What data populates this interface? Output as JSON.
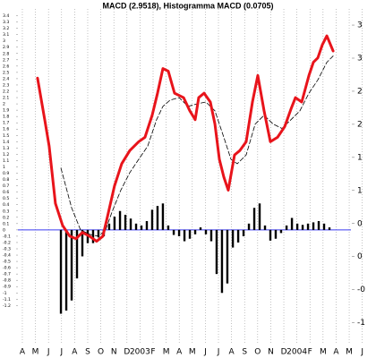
{
  "chart_data": {
    "type": "line",
    "title": "MACD (2.9518), Histogramma MACD (0.0705)",
    "xlim": [
      -0.34,
      26.64
    ],
    "xticks": [
      {
        "value": 0,
        "label": "A"
      },
      {
        "value": 1,
        "label": "M"
      },
      {
        "value": 2,
        "label": "J"
      },
      {
        "value": 3,
        "label": "J"
      },
      {
        "value": 4,
        "label": "A"
      },
      {
        "value": 5,
        "label": "S"
      },
      {
        "value": 6,
        "label": "O"
      },
      {
        "value": 7,
        "label": "N"
      },
      {
        "value": 8,
        "label": "D"
      },
      {
        "value": 9,
        "label": "2003"
      },
      {
        "value": 10,
        "label": "F"
      },
      {
        "value": 11,
        "label": "M"
      },
      {
        "value": 12,
        "label": "A"
      },
      {
        "value": 13,
        "label": "M"
      },
      {
        "value": 14,
        "label": "J"
      },
      {
        "value": 15,
        "label": "J"
      },
      {
        "value": 16,
        "label": "A"
      },
      {
        "value": 17,
        "label": "S"
      },
      {
        "value": 18,
        "label": "O"
      },
      {
        "value": 19,
        "label": "N"
      },
      {
        "value": 20,
        "label": "D"
      },
      {
        "value": 21,
        "label": "2004"
      },
      {
        "value": 22,
        "label": "F"
      },
      {
        "value": 23,
        "label": "M"
      },
      {
        "value": 24,
        "label": "A"
      },
      {
        "value": 25,
        "label": "M"
      },
      {
        "value": 26,
        "label": "J"
      }
    ],
    "ylim": [
      -1.82,
      3.45
    ],
    "yticks": [
      3.4,
      3.3,
      3.2,
      3.1,
      3,
      2.9,
      2.8,
      2.7,
      2.6,
      2.5,
      2.4,
      2.3,
      2.2,
      2.1,
      2,
      1.9,
      1.8,
      1.7,
      1.6,
      1.5,
      1.4,
      1.3,
      1.2,
      1.1,
      1,
      0.9,
      0.8,
      0.7,
      0.6,
      0.5,
      0.4,
      0.3,
      0.2,
      0.1,
      0,
      -0.1,
      -0.2,
      -0.3,
      -0.4,
      -0.5,
      -0.6,
      -0.7,
      -0.8,
      -0.9,
      -1,
      -1.1,
      -1.2
    ],
    "y2lim": [
      -1.33,
      3.69
    ],
    "y2ticks": [
      {
        "value": 3.5,
        "label": "3"
      },
      {
        "value": 3,
        "label": "3"
      },
      {
        "value": 2.5,
        "label": "2"
      },
      {
        "value": 2,
        "label": "2"
      },
      {
        "value": 1.5,
        "label": "1"
      },
      {
        "value": 1,
        "label": "1"
      },
      {
        "value": 0.5,
        "label": "0"
      },
      {
        "value": 0,
        "label": "0"
      },
      {
        "value": -0.5,
        "label": "-0"
      },
      {
        "value": -1,
        "label": "-1"
      }
    ],
    "grid": true,
    "zero_line_color": "#3c3cf0",
    "series": [
      {
        "type": "bar",
        "color": "#000000",
        "x": [
          2.95,
          3.36,
          3.77,
          4.18,
          4.59,
          5.0,
          5.41,
          5.82,
          6.23,
          6.64,
          7.05,
          7.47,
          7.88,
          8.29,
          8.7,
          9.11,
          9.52,
          9.93,
          10.34,
          10.75,
          11.16,
          11.58,
          11.99,
          12.4,
          12.81,
          13.22,
          13.63,
          14.04,
          14.45,
          14.86,
          15.27,
          15.68,
          16.1,
          16.51,
          16.92,
          17.33,
          17.74,
          18.15,
          18.56,
          18.97,
          19.38,
          19.79,
          20.21,
          20.62,
          21.03,
          21.44,
          21.85,
          22.26,
          22.67,
          23.08,
          23.49
        ],
        "values": [
          -1.33,
          -1.28,
          -1.12,
          -0.77,
          -0.42,
          -0.21,
          -0.21,
          -0.12,
          -0.1,
          0.1,
          0.21,
          0.3,
          0.24,
          0.18,
          0.1,
          0.07,
          0.14,
          0.32,
          0.38,
          0.42,
          0.07,
          -0.08,
          -0.1,
          -0.18,
          -0.14,
          -0.07,
          0.04,
          -0.07,
          -0.18,
          -0.7,
          -1.0,
          -0.85,
          -0.28,
          -0.2,
          -0.1,
          0.1,
          0.35,
          0.42,
          0.07,
          -0.17,
          -0.14,
          -0.05,
          0.07,
          0.19,
          0.1,
          0.08,
          0.1,
          0.12,
          0.14,
          0.1,
          0.04
        ]
      },
      {
        "type": "line",
        "color": "#000000",
        "dash": true,
        "width": 0.8,
        "x": [
          2.95,
          3.77,
          4.45,
          5.14,
          5.82,
          6.37,
          6.85,
          7.53,
          8.22,
          8.9,
          9.59,
          10.27,
          10.75,
          11.3,
          11.99,
          12.67,
          13.36,
          14.04,
          14.73,
          15.41,
          15.96,
          16.44,
          17.12,
          17.81,
          18.49,
          19.18,
          19.86,
          20.55,
          21.23,
          21.92,
          22.6,
          23.29,
          23.77
        ],
        "values": [
          0.98,
          0.35,
          0,
          -0.07,
          -0.1,
          0,
          0.28,
          0.63,
          0.91,
          1.12,
          1.33,
          1.75,
          1.96,
          2.06,
          2.1,
          1.96,
          2.0,
          2.03,
          1.89,
          1.47,
          1.12,
          1.05,
          1.19,
          1.68,
          1.82,
          1.68,
          1.61,
          1.75,
          1.89,
          2.17,
          2.38,
          2.66,
          2.76
        ]
      },
      {
        "type": "line",
        "color": "#e8141b",
        "dash": false,
        "width": 3,
        "x": [
          1.16,
          1.71,
          2.05,
          2.53,
          3.08,
          3.63,
          4.11,
          4.59,
          5.14,
          5.68,
          6.16,
          6.51,
          7.05,
          7.6,
          8.22,
          8.9,
          9.38,
          9.93,
          10.34,
          10.75,
          11.16,
          11.64,
          12.33,
          12.81,
          13.22,
          13.49,
          13.9,
          14.38,
          14.73,
          15.07,
          15.41,
          15.75,
          16.23,
          16.64,
          17.12,
          17.6,
          18.01,
          18.49,
          18.97,
          19.52,
          20.07,
          20.55,
          20.89,
          21.37,
          21.92,
          22.26,
          22.6,
          22.95,
          23.29,
          23.77
        ],
        "values": [
          2.41,
          1.75,
          1.33,
          0.42,
          0.07,
          -0.1,
          -0.14,
          -0.04,
          -0.1,
          -0.18,
          -0.1,
          0.21,
          0.7,
          1.05,
          1.26,
          1.4,
          1.47,
          1.82,
          2.17,
          2.56,
          2.52,
          2.17,
          2.1,
          1.89,
          1.75,
          2.1,
          2.17,
          2.03,
          1.68,
          1.12,
          0.84,
          0.63,
          1.19,
          1.26,
          1.4,
          2.03,
          2.45,
          1.89,
          1.4,
          1.47,
          1.64,
          1.92,
          2.1,
          2.03,
          2.45,
          2.66,
          2.73,
          2.94,
          3.08,
          2.84
        ]
      }
    ]
  }
}
